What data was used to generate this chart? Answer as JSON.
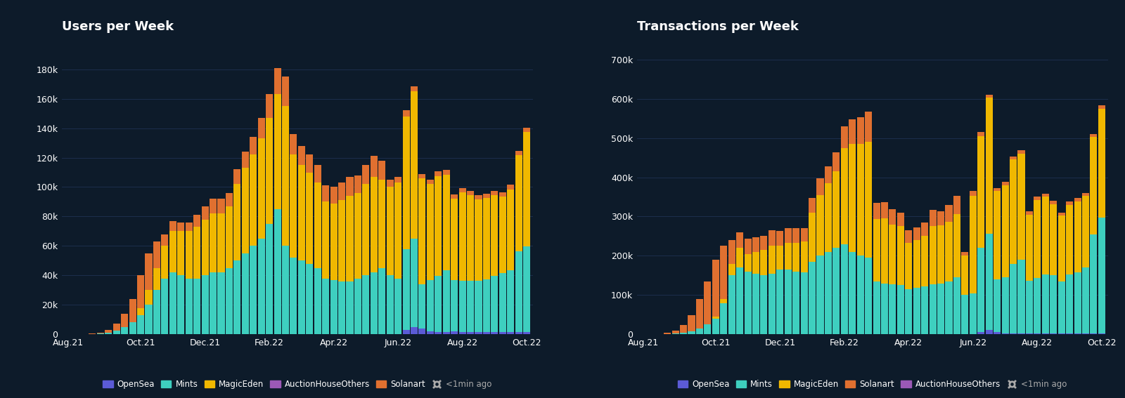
{
  "background_color": "#0d1b2a",
  "plot_bg_color": "#0d1b2a",
  "grid_color": "#1e3050",
  "text_color": "#ffffff",
  "title1": "Users per Week",
  "title2": "Transactions per Week",
  "colors": {
    "OpenSea": "#5b5bd6",
    "Mints": "#3ecfbf",
    "MagicEden": "#f0b800",
    "AuctionHouseOthers": "#9b59b6",
    "Solanart": "#e07030"
  },
  "legend1_order": [
    "OpenSea",
    "Mints",
    "MagicEden",
    "AuctionHouseOthers",
    "Solanart"
  ],
  "legend2_order": [
    "OpenSea",
    "Mints",
    "MagicEden",
    "Solanart",
    "AuctionHouseOthers"
  ],
  "stack_order1": [
    "OpenSea",
    "Mints",
    "MagicEden",
    "Solanart",
    "AuctionHouseOthers"
  ],
  "stack_order2": [
    "OpenSea",
    "Mints",
    "MagicEden",
    "AuctionHouseOthers",
    "Solanart"
  ],
  "n_weeks": 58,
  "xtick_labels": [
    "Aug.21",
    "Oct.21",
    "Dec.21",
    "Feb.22",
    "Apr.22",
    "Jun.22",
    "Aug.22",
    "Oct.22"
  ],
  "xtick_indices": [
    0,
    9,
    17,
    25,
    33,
    41,
    49,
    57
  ],
  "users": {
    "OpenSea": [
      0,
      0,
      0,
      0,
      0,
      0,
      0,
      0,
      0,
      0,
      0,
      0,
      0,
      0,
      0,
      0,
      0,
      0,
      0,
      0,
      0,
      0,
      0,
      0,
      0,
      0,
      0,
      0,
      0,
      0,
      0,
      0,
      0,
      0,
      0,
      0,
      0,
      0,
      0,
      0,
      0,
      0,
      3000,
      5000,
      4000,
      2000,
      1500,
      1500,
      2000,
      1500,
      1500,
      1500,
      1500,
      1500,
      1500,
      1500,
      1500,
      1500
    ],
    "Mints": [
      0,
      0,
      0,
      200,
      500,
      1000,
      2500,
      5000,
      8000,
      13000,
      20000,
      30000,
      38000,
      42000,
      40000,
      38000,
      38000,
      40000,
      42000,
      42000,
      45000,
      50000,
      55000,
      60000,
      65000,
      75000,
      85000,
      60000,
      52000,
      50000,
      48000,
      45000,
      38000,
      37000,
      36000,
      36000,
      38000,
      40000,
      42000,
      45000,
      40000,
      38000,
      55000,
      60000,
      30000,
      35000,
      38000,
      42000,
      35000,
      35000,
      35000,
      35000,
      36000,
      38000,
      40000,
      42000,
      55000,
      58000
    ],
    "MagicEden": [
      0,
      0,
      0,
      0,
      0,
      0,
      0,
      0,
      0,
      5000,
      10000,
      15000,
      22000,
      28000,
      30000,
      32000,
      35000,
      38000,
      40000,
      40000,
      42000,
      52000,
      58000,
      62000,
      68000,
      72000,
      78000,
      95000,
      70000,
      65000,
      62000,
      58000,
      52000,
      52000,
      55000,
      58000,
      58000,
      62000,
      65000,
      60000,
      60000,
      65000,
      90000,
      100000,
      72000,
      65000,
      68000,
      65000,
      55000,
      60000,
      58000,
      55000,
      55000,
      55000,
      52000,
      55000,
      65000,
      78000
    ],
    "AuctionHouseOthers": [
      0,
      0,
      0,
      0,
      0,
      0,
      0,
      0,
      0,
      0,
      0,
      0,
      0,
      0,
      0,
      0,
      0,
      0,
      0,
      0,
      0,
      0,
      0,
      0,
      0,
      0,
      0,
      0,
      0,
      0,
      0,
      0,
      0,
      0,
      0,
      0,
      0,
      0,
      0,
      0,
      0,
      0,
      0,
      0,
      0,
      0,
      0,
      0,
      0,
      0,
      0,
      0,
      0,
      0,
      0,
      0,
      0,
      0
    ],
    "Solanart": [
      0,
      0,
      100,
      300,
      800,
      2000,
      5000,
      9000,
      16000,
      22000,
      25000,
      18000,
      8000,
      7000,
      6000,
      6000,
      8000,
      9000,
      10000,
      10000,
      9000,
      10000,
      11000,
      12000,
      14000,
      16000,
      18000,
      20000,
      14000,
      13000,
      12000,
      12000,
      11000,
      11000,
      12000,
      13000,
      12000,
      13000,
      14000,
      13000,
      5000,
      4000,
      4000,
      3500,
      3000,
      3000,
      3000,
      3000,
      3000,
      3000,
      3000,
      3000,
      3000,
      3000,
      3000,
      3000,
      3000,
      3000
    ]
  },
  "transactions": {
    "OpenSea": [
      0,
      0,
      0,
      0,
      0,
      0,
      0,
      0,
      0,
      0,
      0,
      0,
      0,
      0,
      0,
      0,
      0,
      0,
      0,
      0,
      0,
      0,
      0,
      0,
      0,
      0,
      0,
      0,
      0,
      0,
      0,
      0,
      0,
      0,
      0,
      0,
      0,
      0,
      0,
      0,
      0,
      0,
      5000,
      12000,
      5000,
      3000,
      2000,
      2000,
      2000,
      2000,
      2000,
      2000,
      2000,
      2000,
      2000,
      2000,
      2000,
      2000
    ],
    "Mints": [
      0,
      0,
      0,
      1000,
      2000,
      4000,
      8000,
      15000,
      25000,
      40000,
      80000,
      150000,
      170000,
      160000,
      155000,
      150000,
      155000,
      165000,
      165000,
      160000,
      158000,
      185000,
      200000,
      210000,
      220000,
      230000,
      210000,
      200000,
      195000,
      135000,
      130000,
      128000,
      125000,
      115000,
      118000,
      122000,
      128000,
      130000,
      135000,
      145000,
      100000,
      105000,
      215000,
      245000,
      135000,
      142000,
      178000,
      188000,
      135000,
      142000,
      150000,
      148000,
      132000,
      150000,
      155000,
      168000,
      252000,
      295000
    ],
    "MagicEden": [
      0,
      0,
      0,
      0,
      0,
      0,
      0,
      0,
      0,
      5000,
      10000,
      30000,
      50000,
      45000,
      55000,
      65000,
      70000,
      60000,
      68000,
      72000,
      78000,
      125000,
      155000,
      175000,
      195000,
      245000,
      275000,
      285000,
      295000,
      158000,
      165000,
      152000,
      150000,
      118000,
      122000,
      128000,
      148000,
      148000,
      152000,
      162000,
      100000,
      248000,
      285000,
      345000,
      225000,
      235000,
      265000,
      270000,
      168000,
      198000,
      198000,
      182000,
      168000,
      178000,
      182000,
      182000,
      248000,
      278000
    ],
    "Solanart": [
      0,
      0,
      1000,
      3000,
      8000,
      20000,
      40000,
      75000,
      110000,
      145000,
      135000,
      60000,
      40000,
      38000,
      38000,
      35000,
      40000,
      38000,
      38000,
      38000,
      35000,
      38000,
      42000,
      42000,
      48000,
      55000,
      62000,
      68000,
      78000,
      42000,
      42000,
      38000,
      35000,
      32000,
      32000,
      35000,
      40000,
      35000,
      42000,
      45000,
      10000,
      12000,
      10000,
      8000,
      8000,
      8000,
      8000,
      8000,
      8000,
      8000,
      8000,
      8000,
      8000,
      8000,
      8000,
      8000,
      8000,
      8000
    ],
    "AuctionHouseOthers": [
      0,
      0,
      0,
      0,
      0,
      0,
      0,
      0,
      0,
      0,
      0,
      0,
      0,
      0,
      0,
      0,
      0,
      0,
      0,
      0,
      0,
      0,
      0,
      0,
      0,
      0,
      0,
      0,
      0,
      0,
      0,
      0,
      0,
      0,
      0,
      0,
      0,
      0,
      0,
      0,
      0,
      0,
      0,
      0,
      0,
      0,
      0,
      0,
      0,
      0,
      0,
      0,
      0,
      0,
      0,
      0,
      0,
      0
    ]
  },
  "ylim1": [
    0,
    200000
  ],
  "ylim2": [
    0,
    750000
  ],
  "yticks1": [
    0,
    20000,
    40000,
    60000,
    80000,
    100000,
    120000,
    140000,
    160000,
    180000
  ],
  "yticks2": [
    0,
    100000,
    200000,
    300000,
    400000,
    500000,
    600000,
    700000
  ]
}
